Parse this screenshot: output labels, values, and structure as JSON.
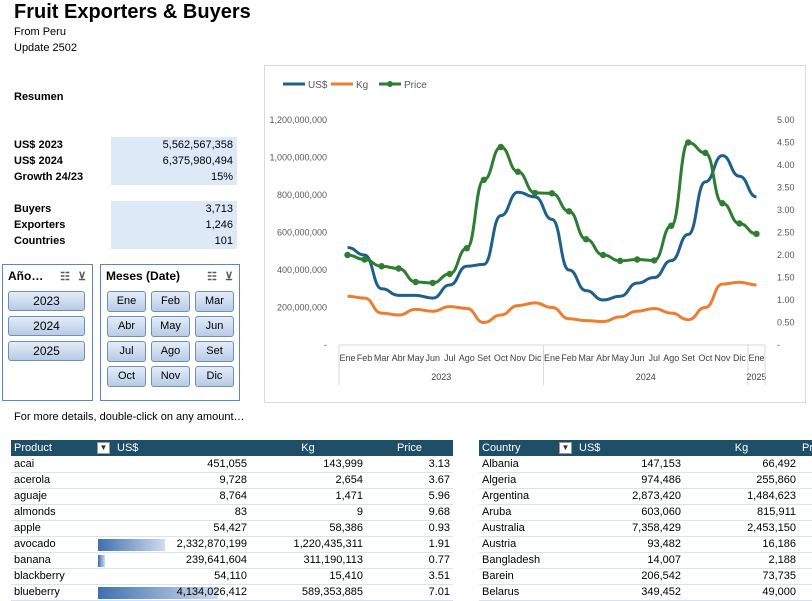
{
  "title": "Fruit Exporters & Buyers",
  "subtitle": "From Peru",
  "update": "Update 2502",
  "summary_label": "Resumen",
  "summary": [
    {
      "label": "US$ 2023",
      "value": "5,562,567,358"
    },
    {
      "label": "US$ 2024",
      "value": "6,375,980,494"
    },
    {
      "label": "Growth 24/23",
      "value": "15%"
    },
    {
      "label": "Buyers",
      "value": "3,713"
    },
    {
      "label": "Exporters",
      "value": "1,246"
    },
    {
      "label": "Countries",
      "value": "101"
    }
  ],
  "year_slicer": {
    "title": "Año…",
    "items": [
      "2023",
      "2024",
      "2025"
    ]
  },
  "month_slicer": {
    "title": "Meses (Date)",
    "items": [
      "Ene",
      "Feb",
      "Mar",
      "Abr",
      "May",
      "Jun",
      "Jul",
      "Ago",
      "Set",
      "Oct",
      "Nov",
      "Dic"
    ]
  },
  "details_note": "For more details, double-click on any amount…",
  "chart_data": {
    "type": "line",
    "legend": [
      "US$",
      "Kg",
      "Price"
    ],
    "legend_position": "top-left",
    "colors": {
      "US$": "#1f5f8b",
      "Kg": "#ed7d31",
      "Price": "#2e7d32"
    },
    "x": [
      "Ene",
      "Feb",
      "Mar",
      "Abr",
      "May",
      "Jun",
      "Jul",
      "Ago",
      "Set",
      "Oct",
      "Nov",
      "Dic",
      "Ene",
      "Feb",
      "Mar",
      "Abr",
      "May",
      "Jun",
      "Jul",
      "Ago",
      "Set",
      "Oct",
      "Nov",
      "Dic",
      "Ene"
    ],
    "year_groups": [
      {
        "label": "2023",
        "count": 12
      },
      {
        "label": "2024",
        "count": 12
      },
      {
        "label": "2025",
        "count": 1
      }
    ],
    "y_left_ticks": [
      "1,200,000,000",
      "1,000,000,000",
      "800,000,000",
      "600,000,000",
      "400,000,000",
      "200,000,000",
      "-"
    ],
    "y_left_range": [
      0,
      1200000000
    ],
    "y_right_ticks": [
      "5.00",
      "4.50",
      "4.00",
      "3.50",
      "3.00",
      "2.50",
      "2.00",
      "1.50",
      "1.00",
      "0.50",
      "-"
    ],
    "y_right_range": [
      0,
      5
    ],
    "series": [
      {
        "name": "US$",
        "axis": "left",
        "values": [
          520000000,
          480000000,
          300000000,
          265000000,
          265000000,
          250000000,
          320000000,
          420000000,
          430000000,
          690000000,
          815000000,
          790000000,
          670000000,
          400000000,
          290000000,
          240000000,
          260000000,
          330000000,
          360000000,
          450000000,
          590000000,
          870000000,
          1010000000,
          900000000,
          790000000
        ]
      },
      {
        "name": "Kg",
        "axis": "left",
        "values": [
          260000000,
          250000000,
          170000000,
          160000000,
          190000000,
          180000000,
          205000000,
          195000000,
          120000000,
          160000000,
          210000000,
          225000000,
          200000000,
          140000000,
          130000000,
          125000000,
          150000000,
          180000000,
          195000000,
          170000000,
          135000000,
          200000000,
          325000000,
          335000000,
          320000000
        ]
      },
      {
        "name": "Price",
        "axis": "right",
        "values": [
          2.0,
          1.9,
          1.75,
          1.7,
          1.4,
          1.38,
          1.58,
          2.15,
          3.67,
          4.4,
          3.85,
          3.38,
          3.37,
          2.97,
          2.35,
          2.0,
          1.87,
          1.9,
          1.88,
          2.65,
          4.5,
          4.27,
          3.15,
          2.7,
          2.47
        ]
      }
    ]
  },
  "product_table": {
    "headers": [
      "Product",
      "US$",
      "Kg",
      "Price"
    ],
    "rows": [
      {
        "name": "acai",
        "usd": "451,055",
        "kg": "143,999",
        "price": "3.13",
        "bar": 0
      },
      {
        "name": "acerola",
        "usd": "9,728",
        "kg": "2,654",
        "price": "3.67",
        "bar": 0
      },
      {
        "name": "aguaje",
        "usd": "8,764",
        "kg": "1,471",
        "price": "5.96",
        "bar": 0
      },
      {
        "name": "almonds",
        "usd": "83",
        "kg": "9",
        "price": "9.68",
        "bar": 0
      },
      {
        "name": "apple",
        "usd": "54,427",
        "kg": "58,386",
        "price": "0.93",
        "bar": 0
      },
      {
        "name": "avocado",
        "usd": "2,332,870,199",
        "kg": "1,220,435,311",
        "price": "1.91",
        "bar": 0.56
      },
      {
        "name": "banana",
        "usd": "239,641,604",
        "kg": "311,190,113",
        "price": "0.77",
        "bar": 0.058
      },
      {
        "name": "blackberry",
        "usd": "54,110",
        "kg": "15,410",
        "price": "3.51",
        "bar": 0
      },
      {
        "name": "blueberry",
        "usd": "4,134,026,412",
        "kg": "589,353,885",
        "price": "7.01",
        "bar": 1
      }
    ]
  },
  "country_table": {
    "headers": [
      "Country",
      "US$",
      "Kg",
      "Pr"
    ],
    "rows": [
      {
        "name": "Albania",
        "usd": "147,153",
        "kg": "66,492"
      },
      {
        "name": "Algeria",
        "usd": "974,486",
        "kg": "255,860"
      },
      {
        "name": "Argentina",
        "usd": "2,873,420",
        "kg": "1,484,623"
      },
      {
        "name": "Aruba",
        "usd": "603,060",
        "kg": "815,911"
      },
      {
        "name": "Australia",
        "usd": "7,358,429",
        "kg": "2,453,150"
      },
      {
        "name": "Austria",
        "usd": "93,482",
        "kg": "16,186"
      },
      {
        "name": "Bangladesh",
        "usd": "14,007",
        "kg": "2,188"
      },
      {
        "name": "Barein",
        "usd": "206,542",
        "kg": "73,735"
      },
      {
        "name": "Belarus",
        "usd": "349,452",
        "kg": "49,000"
      }
    ]
  }
}
